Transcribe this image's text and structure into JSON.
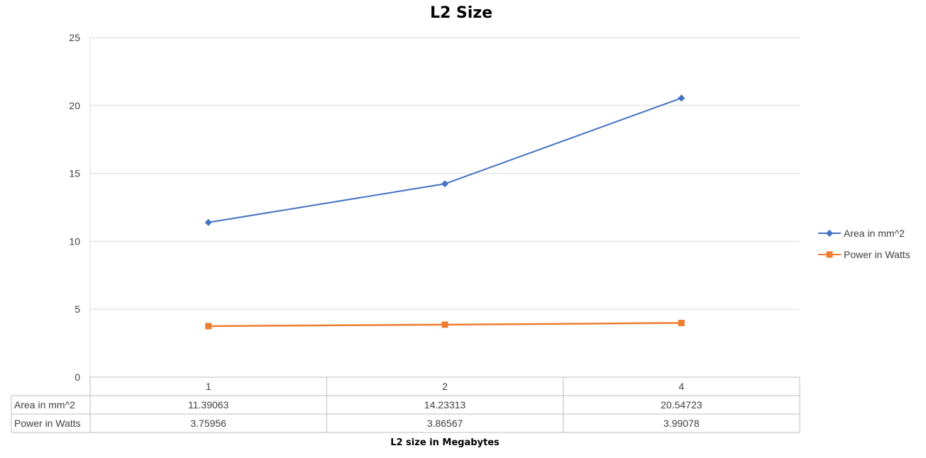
{
  "chart_data": {
    "type": "line",
    "title": "L2 Size",
    "xlabel": "L2 size in Megabytes",
    "ylabel": "",
    "categories": [
      "1",
      "2",
      "4"
    ],
    "ylim": [
      0,
      25
    ],
    "yticks": [
      0,
      5,
      10,
      15,
      20,
      25
    ],
    "grid": true,
    "legend_position": "right",
    "data_table": true,
    "series": [
      {
        "name": "Area in mm^2",
        "values": [
          11.39063,
          14.23313,
          20.54723
        ],
        "labels": [
          "11.39063",
          "14.23313",
          "20.54723"
        ],
        "color": "#4472C4",
        "marker": "diamond"
      },
      {
        "name": "Power in Watts",
        "values": [
          3.75956,
          3.86567,
          3.99078
        ],
        "labels": [
          "3.75956",
          "3.86567",
          "3.99078"
        ],
        "color": "#ED7D31",
        "marker": "square"
      }
    ]
  }
}
